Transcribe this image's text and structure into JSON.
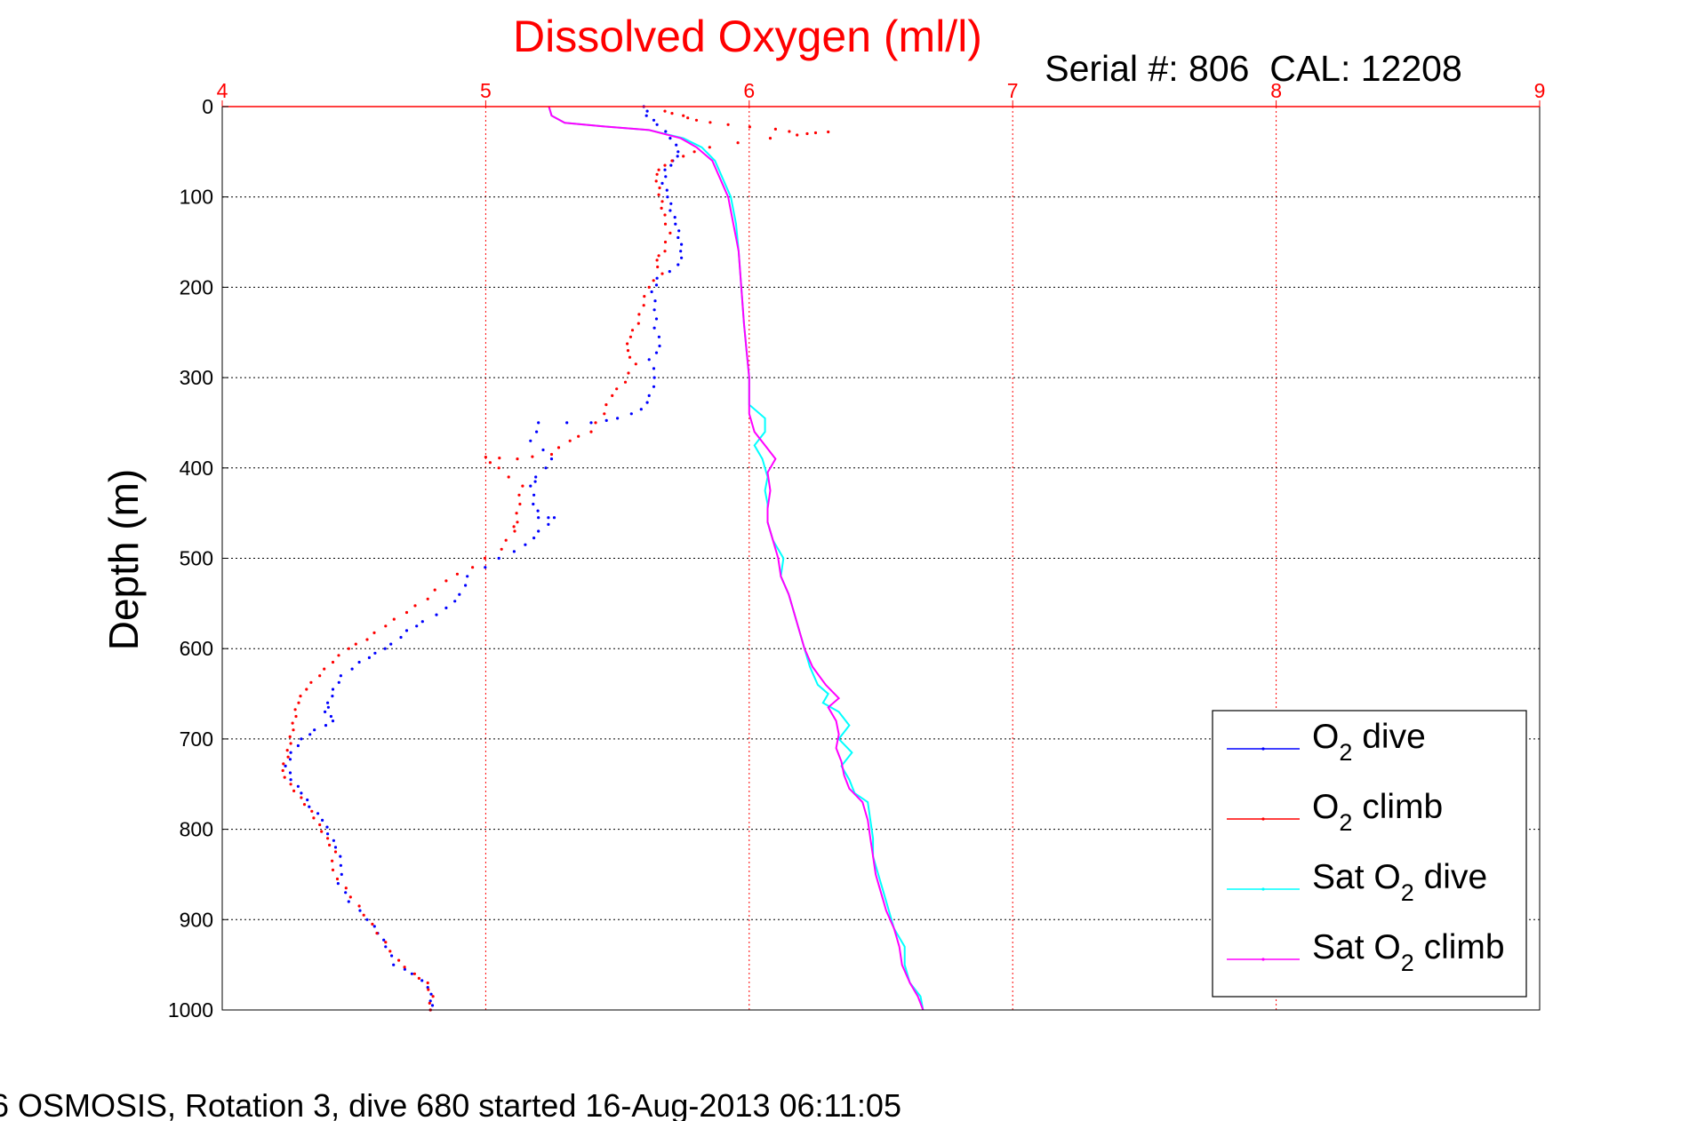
{
  "chart_data": {
    "type": "scatter",
    "title": "Dissolved Oxygen (ml/l)",
    "subtitle": "Serial #: 806  CAL: 12208",
    "ylabel": "Depth (m)",
    "xlabel": "",
    "footer": "6 OSMOSIS, Rotation 3, dive 680 started 16-Aug-2013 06:11:05",
    "xlim": [
      4,
      9
    ],
    "ylim": [
      0,
      1000
    ],
    "y_reversed": true,
    "x_axis_position": "top",
    "x_ticks": [
      "4",
      "5",
      "6",
      "7",
      "8",
      "9"
    ],
    "y_ticks": [
      "0",
      "100",
      "200",
      "300",
      "400",
      "500",
      "600",
      "700",
      "800",
      "900",
      "1000"
    ],
    "grid": true,
    "legend_placement": "bottom-right",
    "colors": {
      "title": "#ff0000",
      "x_ticks": "#ff0000",
      "vertical_grid": "#ff0000",
      "horizontal_grid": "#000000"
    },
    "series": [
      {
        "name": "O2 dive",
        "legend_main": "O",
        "legend_sub": "2",
        "legend_rest": " dive",
        "color": "#0000ff",
        "style": "dots",
        "points": [
          [
            5.6,
            0
          ],
          [
            5.61,
            10
          ],
          [
            5.65,
            20
          ],
          [
            5.7,
            35
          ],
          [
            5.73,
            50
          ],
          [
            5.71,
            60
          ],
          [
            5.68,
            70
          ],
          [
            5.67,
            85
          ],
          [
            5.69,
            100
          ],
          [
            5.7,
            115
          ],
          [
            5.72,
            130
          ],
          [
            5.73,
            145
          ],
          [
            5.74,
            160
          ],
          [
            5.73,
            175
          ],
          [
            5.65,
            190
          ],
          [
            5.63,
            205
          ],
          [
            5.64,
            225
          ],
          [
            5.64,
            245
          ],
          [
            5.66,
            265
          ],
          [
            5.62,
            280
          ],
          [
            5.64,
            300
          ],
          [
            5.62,
            320
          ],
          [
            5.59,
            335
          ],
          [
            5.5,
            345
          ],
          [
            5.4,
            350
          ],
          [
            5.2,
            350
          ],
          [
            5.17,
            370
          ],
          [
            5.25,
            390
          ],
          [
            5.19,
            410
          ],
          [
            5.17,
            420
          ],
          [
            5.18,
            440
          ],
          [
            5.2,
            455
          ],
          [
            5.26,
            455
          ],
          [
            5.2,
            470
          ],
          [
            5.15,
            485
          ],
          [
            5.05,
            500
          ],
          [
            4.93,
            520
          ],
          [
            4.9,
            540
          ],
          [
            4.85,
            555
          ],
          [
            4.76,
            570
          ],
          [
            4.7,
            580
          ],
          [
            4.64,
            595
          ],
          [
            4.58,
            605
          ],
          [
            4.52,
            615
          ],
          [
            4.45,
            630
          ],
          [
            4.42,
            645
          ],
          [
            4.4,
            660
          ],
          [
            4.39,
            670
          ],
          [
            4.42,
            680
          ],
          [
            4.35,
            690
          ],
          [
            4.3,
            700
          ],
          [
            4.26,
            715
          ],
          [
            4.24,
            730
          ],
          [
            4.26,
            745
          ],
          [
            4.3,
            760
          ],
          [
            4.33,
            775
          ],
          [
            4.38,
            790
          ],
          [
            4.4,
            805
          ],
          [
            4.43,
            820
          ],
          [
            4.45,
            840
          ],
          [
            4.44,
            860
          ],
          [
            4.48,
            880
          ],
          [
            4.55,
            900
          ],
          [
            4.59,
            915
          ],
          [
            4.62,
            930
          ],
          [
            4.65,
            950
          ],
          [
            4.72,
            960
          ],
          [
            4.78,
            975
          ],
          [
            4.79,
            990
          ],
          [
            4.79,
            1000
          ]
        ]
      },
      {
        "name": "O2 climb",
        "legend_main": "O",
        "legend_sub": "2",
        "legend_rest": " climb",
        "color": "#ff0000",
        "style": "dots",
        "points": [
          [
            5.68,
            5
          ],
          [
            5.75,
            10
          ],
          [
            5.8,
            15
          ],
          [
            5.92,
            20
          ],
          [
            6.1,
            25
          ],
          [
            6.22,
            30
          ],
          [
            6.3,
            28
          ],
          [
            6.08,
            35
          ],
          [
            5.85,
            45
          ],
          [
            5.75,
            55
          ],
          [
            5.68,
            65
          ],
          [
            5.65,
            75
          ],
          [
            5.66,
            90
          ],
          [
            5.67,
            105
          ],
          [
            5.68,
            120
          ],
          [
            5.7,
            140
          ],
          [
            5.68,
            160
          ],
          [
            5.65,
            170
          ],
          [
            5.67,
            185
          ],
          [
            5.62,
            200
          ],
          [
            5.6,
            220
          ],
          [
            5.58,
            240
          ],
          [
            5.55,
            255
          ],
          [
            5.54,
            270
          ],
          [
            5.57,
            285
          ],
          [
            5.53,
            305
          ],
          [
            5.48,
            320
          ],
          [
            5.45,
            340
          ],
          [
            5.4,
            360
          ],
          [
            5.32,
            370
          ],
          [
            5.25,
            385
          ],
          [
            5.12,
            390
          ],
          [
            5.0,
            388
          ],
          [
            5.05,
            400
          ],
          [
            5.14,
            420
          ],
          [
            5.13,
            440
          ],
          [
            5.12,
            460
          ],
          [
            5.11,
            470
          ],
          [
            5.06,
            490
          ],
          [
            4.95,
            510
          ],
          [
            4.85,
            525
          ],
          [
            4.78,
            545
          ],
          [
            4.7,
            560
          ],
          [
            4.62,
            575
          ],
          [
            4.55,
            590
          ],
          [
            4.48,
            600
          ],
          [
            4.42,
            615
          ],
          [
            4.37,
            630
          ],
          [
            4.32,
            645
          ],
          [
            4.29,
            660
          ],
          [
            4.28,
            675
          ],
          [
            4.27,
            690
          ],
          [
            4.26,
            705
          ],
          [
            4.25,
            720
          ],
          [
            4.23,
            735
          ],
          [
            4.26,
            750
          ],
          [
            4.3,
            765
          ],
          [
            4.34,
            780
          ],
          [
            4.37,
            795
          ],
          [
            4.4,
            810
          ],
          [
            4.43,
            825
          ],
          [
            4.42,
            845
          ],
          [
            4.47,
            865
          ],
          [
            4.52,
            885
          ],
          [
            4.57,
            905
          ],
          [
            4.62,
            925
          ],
          [
            4.67,
            945
          ],
          [
            4.73,
            960
          ],
          [
            4.78,
            970
          ],
          [
            4.8,
            985
          ],
          [
            4.79,
            1000
          ]
        ]
      },
      {
        "name": "Sat O2 dive",
        "legend_main": "Sat O",
        "legend_sub": "2",
        "legend_rest": " dive",
        "color": "#00ffff",
        "style": "line",
        "points": [
          [
            5.24,
            0
          ],
          [
            5.25,
            10
          ],
          [
            5.3,
            18
          ],
          [
            5.45,
            22
          ],
          [
            5.62,
            26
          ],
          [
            5.75,
            35
          ],
          [
            5.82,
            45
          ],
          [
            5.87,
            60
          ],
          [
            5.9,
            80
          ],
          [
            5.93,
            100
          ],
          [
            5.95,
            130
          ],
          [
            5.96,
            160
          ],
          [
            5.97,
            200
          ],
          [
            5.98,
            240
          ],
          [
            5.99,
            270
          ],
          [
            6.0,
            300
          ],
          [
            6.0,
            330
          ],
          [
            6.06,
            345
          ],
          [
            6.06,
            360
          ],
          [
            6.02,
            375
          ],
          [
            6.05,
            390
          ],
          [
            6.07,
            410
          ],
          [
            6.06,
            425
          ],
          [
            6.07,
            440
          ],
          [
            6.07,
            460
          ],
          [
            6.09,
            480
          ],
          [
            6.13,
            500
          ],
          [
            6.12,
            520
          ],
          [
            6.15,
            540
          ],
          [
            6.17,
            560
          ],
          [
            6.19,
            580
          ],
          [
            6.21,
            600
          ],
          [
            6.23,
            620
          ],
          [
            6.26,
            640
          ],
          [
            6.3,
            650
          ],
          [
            6.28,
            660
          ],
          [
            6.34,
            670
          ],
          [
            6.38,
            685
          ],
          [
            6.34,
            700
          ],
          [
            6.39,
            715
          ],
          [
            6.35,
            730
          ],
          [
            6.38,
            745
          ],
          [
            6.4,
            760
          ],
          [
            6.45,
            770
          ],
          [
            6.46,
            790
          ],
          [
            6.47,
            810
          ],
          [
            6.47,
            830
          ],
          [
            6.49,
            850
          ],
          [
            6.51,
            870
          ],
          [
            6.53,
            890
          ],
          [
            6.55,
            910
          ],
          [
            6.59,
            930
          ],
          [
            6.59,
            950
          ],
          [
            6.61,
            970
          ],
          [
            6.65,
            985
          ],
          [
            6.66,
            1000
          ]
        ]
      },
      {
        "name": "Sat O2 climb",
        "legend_main": "Sat O",
        "legend_sub": "2",
        "legend_rest": " climb",
        "color": "#ff00ff",
        "style": "line",
        "points": [
          [
            5.24,
            0
          ],
          [
            5.25,
            10
          ],
          [
            5.3,
            18
          ],
          [
            5.45,
            22
          ],
          [
            5.62,
            26
          ],
          [
            5.74,
            35
          ],
          [
            5.8,
            45
          ],
          [
            5.86,
            60
          ],
          [
            5.89,
            80
          ],
          [
            5.92,
            100
          ],
          [
            5.94,
            130
          ],
          [
            5.96,
            160
          ],
          [
            5.97,
            200
          ],
          [
            5.98,
            240
          ],
          [
            5.99,
            270
          ],
          [
            6.0,
            300
          ],
          [
            6.0,
            340
          ],
          [
            6.02,
            360
          ],
          [
            6.06,
            375
          ],
          [
            6.1,
            390
          ],
          [
            6.07,
            405
          ],
          [
            6.08,
            425
          ],
          [
            6.07,
            445
          ],
          [
            6.07,
            460
          ],
          [
            6.09,
            480
          ],
          [
            6.11,
            500
          ],
          [
            6.12,
            520
          ],
          [
            6.15,
            540
          ],
          [
            6.17,
            560
          ],
          [
            6.19,
            580
          ],
          [
            6.21,
            600
          ],
          [
            6.24,
            620
          ],
          [
            6.29,
            640
          ],
          [
            6.34,
            655
          ],
          [
            6.3,
            665
          ],
          [
            6.33,
            680
          ],
          [
            6.34,
            695
          ],
          [
            6.33,
            710
          ],
          [
            6.35,
            725
          ],
          [
            6.36,
            740
          ],
          [
            6.38,
            755
          ],
          [
            6.43,
            770
          ],
          [
            6.45,
            790
          ],
          [
            6.46,
            810
          ],
          [
            6.47,
            830
          ],
          [
            6.48,
            850
          ],
          [
            6.5,
            870
          ],
          [
            6.52,
            890
          ],
          [
            6.55,
            910
          ],
          [
            6.57,
            930
          ],
          [
            6.58,
            950
          ],
          [
            6.61,
            970
          ],
          [
            6.64,
            985
          ],
          [
            6.66,
            1000
          ]
        ]
      }
    ]
  }
}
